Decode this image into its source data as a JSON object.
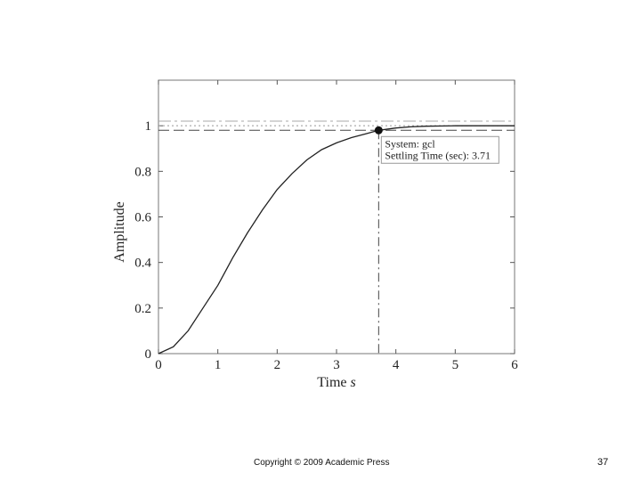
{
  "chart_data": {
    "type": "line",
    "title": "",
    "xlabel": "Time",
    "xlabel_unit": "s",
    "ylabel": "Amplitude",
    "xlim": [
      0,
      6
    ],
    "ylim": [
      0,
      1.2
    ],
    "xticks": [
      0,
      1,
      2,
      3,
      4,
      5,
      6
    ],
    "yticks": [
      0,
      0.2,
      0.4,
      0.6,
      0.8,
      1
    ],
    "grid": false,
    "series": [
      {
        "x": [
          0,
          0.25,
          0.5,
          0.75,
          1,
          1.25,
          1.5,
          1.75,
          2,
          2.25,
          2.5,
          2.75,
          3,
          3.25,
          3.5,
          3.71,
          4,
          4.25,
          4.5,
          5,
          5.5,
          6
        ],
        "y": [
          0,
          0.03,
          0.1,
          0.2,
          0.3,
          0.42,
          0.53,
          0.63,
          0.72,
          0.79,
          0.85,
          0.895,
          0.925,
          0.948,
          0.965,
          0.98,
          0.99,
          0.995,
          0.998,
          1.0,
          1.0,
          1.0
        ]
      }
    ],
    "reference_lines": [
      {
        "y": 1.02,
        "style": "dash-dot"
      },
      {
        "y": 1.0,
        "style": "dotted"
      },
      {
        "y": 0.98,
        "style": "dashed"
      }
    ],
    "marker": {
      "x": 3.71,
      "y": 0.98
    },
    "annotation": {
      "lines": [
        "System: gcl",
        "Settling Time (sec): 3.71"
      ]
    }
  },
  "footer": {
    "copyright": "Copyright © 2009 Academic Press",
    "page_number": "37"
  }
}
